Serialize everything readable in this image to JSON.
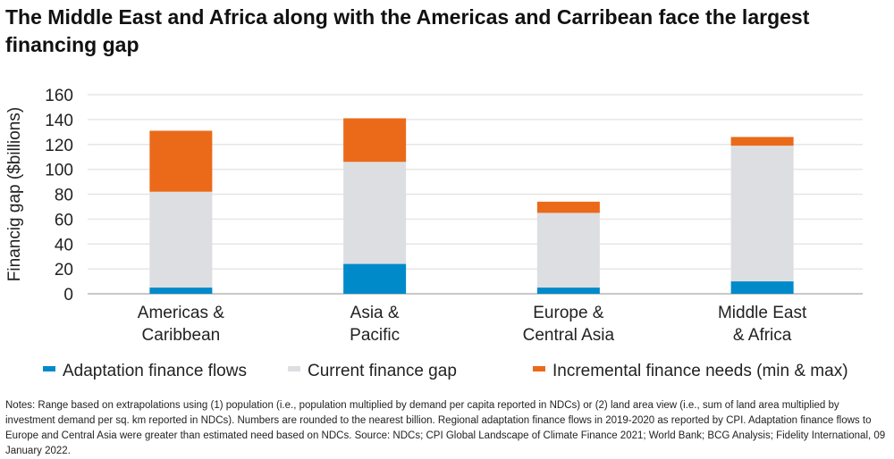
{
  "title": "The Middle East and Africa along with the Americas and Carribean face the largest financing gap",
  "chart_data": {
    "type": "bar",
    "stacked": true,
    "ylabel": "Financig gap ($billions)",
    "ylim": [
      0,
      160
    ],
    "yticks": [
      0,
      20,
      40,
      60,
      80,
      100,
      120,
      140,
      160
    ],
    "grid": true,
    "legend_position": "bottom",
    "categories": [
      [
        "Americas &",
        "Caribbean"
      ],
      [
        "Asia &",
        "Pacific"
      ],
      [
        "Europe &",
        "Central Asia"
      ],
      [
        "Middle East",
        "& Africa"
      ]
    ],
    "series": [
      {
        "name": "Adaptation finance flows",
        "color": "#008AC9",
        "values": [
          5,
          24,
          5,
          10
        ]
      },
      {
        "name": "Current finance gap",
        "color": "#DDDEE1",
        "values": [
          77,
          82,
          60,
          109
        ]
      },
      {
        "name": "Incremental finance needs (min & max)",
        "color": "#EA6A1A",
        "values": [
          49,
          35,
          9,
          7
        ]
      }
    ]
  },
  "notes": "Notes: Range based on extrapolations using (1) population (i.e., population multiplied by demand per capita reported in NDCs) or (2) land area view (i.e., sum of land area multiplied by investment demand per sq. km reported in NDCs). Numbers are rounded to the nearest billion. Regional adaptation finance flows in 2019-2020 as reported by CPI. Adaptation finance flows to Europe and Central Asia were greater than estimated need based on NDCs. Source: NDCs; CPI Global Landscape of Climate Finance 2021; World Bank; BCG Analysis; Fidelity International, 09 January 2022."
}
